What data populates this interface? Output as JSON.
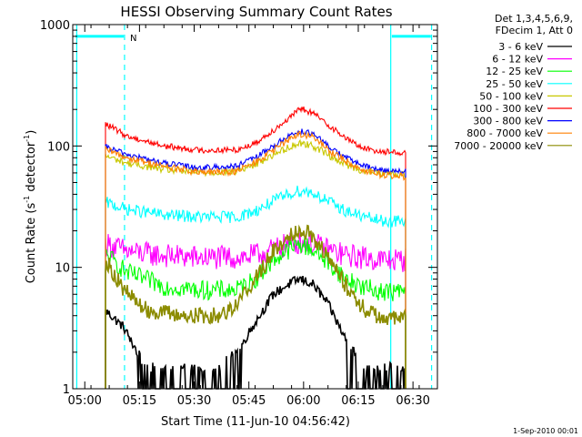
{
  "chart_data": {
    "type": "line",
    "title": "HESSI Observing Summary Count Rates",
    "xlabel": "Start Time (11-Jun-10 04:56:42)",
    "ylabel_main": "Count Rate (s",
    "ylabel_sup1": "-1",
    "ylabel_mid": " detector",
    "ylabel_sup2": "-1",
    "ylabel_end": ")",
    "ylog": true,
    "ylim": [
      1,
      1000
    ],
    "xlim_minutes": [
      0,
      100
    ],
    "grid": false,
    "x_ticks": [
      {
        "minute": 3.3,
        "label": "05:00"
      },
      {
        "minute": 18.3,
        "label": "05:15"
      },
      {
        "minute": 33.3,
        "label": "05:30"
      },
      {
        "minute": 48.3,
        "label": "05:45"
      },
      {
        "minute": 63.3,
        "label": "06:00"
      },
      {
        "minute": 78.3,
        "label": "06:15"
      },
      {
        "minute": 93.3,
        "label": "06:30"
      }
    ],
    "y_ticks": [
      {
        "value": 1,
        "label": "1"
      },
      {
        "value": 10,
        "label": "10"
      },
      {
        "value": 100,
        "label": "100"
      },
      {
        "value": 1000,
        "label": "1000"
      }
    ],
    "legend_header": [
      "Det 1,3,4,5,6,9,",
      "FDecim 1, Att 0"
    ],
    "legend_position": "right",
    "night_flag": "N",
    "footer_date": "1-Sep-2010 00:01",
    "markers": {
      "solid_minutes": [
        1.1,
        87.2
      ],
      "dashed_minutes": [
        14.2,
        98.4
      ],
      "night_bars": [
        [
          0.8,
          14.0
        ],
        [
          87.5,
          98.2
        ]
      ],
      "night_level": 800,
      "color": "#00ffff"
    },
    "data_span_minutes": [
      9.1,
      91.3
    ],
    "peak_minute": 62.5,
    "series": [
      {
        "name": "3 - 6 keV",
        "color": "#000000",
        "x": [
          9.4,
          14,
          20,
          30,
          40,
          45,
          50,
          55,
          60,
          62.5,
          66,
          70,
          75,
          80,
          85,
          90.9
        ],
        "y": [
          4.3,
          3.2,
          1.5,
          1.5,
          1.5,
          2.0,
          3.5,
          6.0,
          7.5,
          8.0,
          7.2,
          5.0,
          2.5,
          1.5,
          1.5,
          1.5
        ]
      },
      {
        "name": "6 - 12 keV",
        "color": "#ff00ff",
        "x": [
          9.4,
          15,
          25,
          35,
          45,
          50,
          55,
          60,
          62.5,
          66,
          70,
          75,
          80,
          85,
          90.9
        ],
        "y": [
          15.5,
          13.5,
          12.5,
          12.0,
          12.0,
          12.5,
          14.0,
          15.8,
          16.2,
          15.5,
          14.0,
          12.5,
          12.0,
          11.5,
          11.5
        ]
      },
      {
        "name": "12 - 25 keV",
        "color": "#00ff00",
        "x": [
          9.4,
          15,
          25,
          35,
          45,
          50,
          55,
          60,
          62.5,
          66,
          70,
          75,
          80,
          85,
          90.9
        ],
        "y": [
          12.5,
          9.0,
          7.0,
          6.5,
          6.5,
          8.0,
          11.5,
          14.5,
          15.5,
          14.0,
          11.0,
          8.0,
          6.8,
          6.3,
          6.3
        ]
      },
      {
        "name": "25 - 50 keV",
        "color": "#00ffff",
        "x": [
          9.4,
          15,
          25,
          35,
          45,
          50,
          55,
          60,
          62.5,
          66,
          70,
          75,
          80,
          85,
          90.9
        ],
        "y": [
          34,
          30,
          27,
          26,
          26,
          29,
          35,
          41,
          43,
          41,
          35,
          29,
          26,
          24,
          24
        ]
      },
      {
        "name": "50 - 100 keV",
        "color": "#c8c800",
        "x": [
          9.4,
          15,
          25,
          35,
          45,
          50,
          55,
          60,
          62.5,
          66,
          70,
          75,
          80,
          85,
          90.9
        ],
        "y": [
          82,
          72,
          64,
          60,
          62,
          70,
          85,
          100,
          106,
          100,
          85,
          70,
          62,
          59,
          58
        ]
      },
      {
        "name": "100 - 300 keV",
        "color": "#ff0000",
        "x": [
          9.4,
          15,
          25,
          35,
          45,
          50,
          55,
          60,
          62.5,
          66,
          70,
          75,
          80,
          85,
          90.9
        ],
        "y": [
          150,
          120,
          100,
          92,
          93,
          105,
          135,
          175,
          205,
          185,
          150,
          115,
          95,
          90,
          88
        ]
      },
      {
        "name": "300 - 800 keV",
        "color": "#0000ff",
        "x": [
          9.4,
          15,
          25,
          35,
          45,
          50,
          55,
          60,
          62.5,
          66,
          70,
          75,
          80,
          85,
          90.9
        ],
        "y": [
          97,
          85,
          72,
          66,
          68,
          80,
          100,
          125,
          132,
          125,
          100,
          80,
          68,
          63,
          62
        ]
      },
      {
        "name": "800 - 7000 keV",
        "color": "#ff8000",
        "x": [
          9.4,
          15,
          25,
          35,
          45,
          50,
          55,
          60,
          62.5,
          66,
          70,
          75,
          80,
          85,
          90.9
        ],
        "y": [
          92,
          80,
          68,
          60,
          62,
          73,
          92,
          118,
          126,
          118,
          93,
          75,
          63,
          58,
          56
        ]
      },
      {
        "name": "7000 - 20000 keV",
        "color": "#8c8c00",
        "x": [
          9.4,
          14,
          20,
          30,
          40,
          45,
          50,
          55,
          60,
          62.5,
          66,
          70,
          75,
          80,
          85,
          90.9
        ],
        "y": [
          11.0,
          6.5,
          4.5,
          4.0,
          4.0,
          5.0,
          8.0,
          13.5,
          19.0,
          21.0,
          18.0,
          12.0,
          7.0,
          4.5,
          3.8,
          3.8
        ]
      }
    ]
  }
}
